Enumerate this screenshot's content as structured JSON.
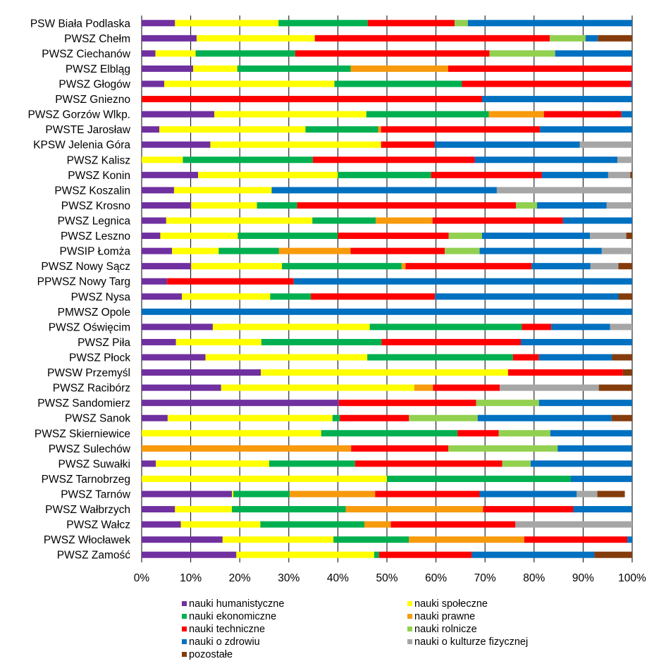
{
  "chart_data": {
    "type": "bar",
    "orientation": "horizontal",
    "stacked": true,
    "normalized": true,
    "xlim": [
      0,
      100
    ],
    "grid": true,
    "legend_position": "bottom",
    "x_ticks": [
      "0%",
      "10%",
      "20%",
      "30%",
      "40%",
      "50%",
      "60%",
      "70%",
      "80%",
      "90%",
      "100%"
    ],
    "categories": [
      "PSW Biała Podlaska",
      "PWSZ Chełm",
      "PWSZ Ciechanów",
      "PWSZ Elbląg",
      "PWSZ Głogów",
      "PWSZ Gniezno",
      "PWSZ Gorzów Wlkp.",
      "PWSTE Jarosław",
      "KPSW Jelenia Góra",
      "PWSZ Kalisz",
      "PWSZ Konin",
      "PWSZ Koszalin",
      "PWSZ Krosno",
      "PWSZ Legnica",
      "PWSZ Leszno",
      "PWSIP Łomża",
      "PWSZ Nowy Sącz",
      "PPWSZ Nowy Targ",
      "PWSZ Nysa",
      "PMWSZ Opole",
      "PWSZ Oświęcim",
      "PWSZ Piła",
      "PWSZ Płock",
      "PWSW Przemyśl",
      "PWSZ Racibórz",
      "PWSZ Sandomierz",
      "PWSZ Sanok",
      "PWSZ Skierniewice",
      "PWSZ Sulechów",
      "PWSZ Suwałki",
      "PWSZ Tarnobrzeg",
      "PWSZ Tarnów",
      "PWSZ Wałbrzych",
      "PWSZ Wałcz",
      "PWSZ Włocławek",
      "PWSZ Zamość"
    ],
    "series": [
      {
        "name": "nauki humanistyczne",
        "color": "#7030A0",
        "values": [
          6.8,
          11.2,
          2.8,
          10.5,
          4.6,
          0,
          14.8,
          3.6,
          14.0,
          0,
          11.5,
          6.6,
          10.1,
          5.0,
          3.8,
          6.2,
          10.1,
          5.2,
          8.2,
          0,
          14.5,
          7.0,
          13.0,
          24.3,
          16.2,
          40.2,
          5.3,
          0,
          0,
          2.9,
          0,
          18.4,
          6.8,
          8.0,
          16.5,
          19.3
        ]
      },
      {
        "name": "nauki społeczne",
        "color": "#FFFF00",
        "values": [
          21.1,
          24.1,
          8.2,
          9.0,
          34.7,
          0,
          31.0,
          29.8,
          34.8,
          8.4,
          28.5,
          19.9,
          13.4,
          29.8,
          15.8,
          9.5,
          18.5,
          0,
          18.0,
          0,
          32.0,
          17.4,
          33.0,
          50.4,
          39.4,
          0,
          33.6,
          36.6,
          0,
          23.1,
          50.0,
          0.3,
          11.6,
          16.2,
          22.6,
          28.1
        ]
      },
      {
        "name": "nauki ekonomiczne",
        "color": "#00B050",
        "values": [
          18.2,
          0,
          20.3,
          23.1,
          26.0,
          0,
          25.0,
          14.8,
          0,
          26.5,
          19.0,
          0,
          8.2,
          12.9,
          20.4,
          12.3,
          24.4,
          0,
          8.3,
          0,
          31.0,
          24.5,
          29.7,
          0,
          0,
          0,
          1.5,
          27.8,
          0,
          17.5,
          37.5,
          11.5,
          23.2,
          21.2,
          15.4,
          1.0
        ]
      },
      {
        "name": "nauki prawne",
        "color": "#F79A0C",
        "values": [
          0,
          0,
          0,
          19.9,
          0,
          0,
          11.2,
          0.6,
          0,
          0,
          0,
          0,
          0,
          11.6,
          0,
          14.6,
          0.8,
          0,
          0,
          0,
          0,
          0,
          0,
          0,
          3.8,
          0,
          0,
          0,
          42.7,
          0,
          0,
          17.4,
          28.0,
          5.4,
          23.5,
          0
        ]
      },
      {
        "name": "nauki techniczne",
        "color": "#FF0000",
        "values": [
          17.7,
          47.9,
          39.6,
          37.5,
          34.5,
          69.4,
          15.8,
          32.4,
          10.9,
          33.0,
          22.6,
          0,
          44.6,
          26.6,
          22.6,
          19.2,
          25.7,
          25.8,
          25.3,
          0,
          6.0,
          28.4,
          5.3,
          23.4,
          13.6,
          28.0,
          14.1,
          8.4,
          19.8,
          30.0,
          0,
          21.3,
          18.4,
          25.4,
          21.0,
          18.9
        ]
      },
      {
        "name": "nauki rolnicze",
        "color": "#92D050",
        "values": [
          2.7,
          7.3,
          13.4,
          0,
          0,
          0,
          0,
          0,
          0,
          0,
          0,
          0,
          4.3,
          0,
          6.8,
          7.1,
          0,
          0,
          0,
          0,
          0,
          0,
          0,
          0,
          0,
          12.8,
          14.0,
          10.5,
          22.3,
          5.8,
          0,
          0,
          0,
          0,
          0,
          0
        ]
      },
      {
        "name": "nauki o zdrowiu",
        "color": "#0070C0",
        "values": [
          33.5,
          2.5,
          15.7,
          0,
          0.2,
          30.6,
          2.2,
          18.8,
          29.6,
          29.1,
          13.5,
          45.9,
          14.2,
          14.1,
          22.0,
          24.9,
          12.0,
          69.0,
          37.4,
          100,
          12.0,
          22.7,
          14.9,
          0,
          0,
          19.0,
          27.3,
          16.7,
          15.2,
          20.7,
          12.5,
          19.8,
          12.0,
          0,
          1.0,
          25.0
        ]
      },
      {
        "name": "nauki o kulturze fizycznej",
        "color": "#A6A6A6",
        "values": [
          0,
          0,
          0,
          0,
          0,
          0,
          0,
          0,
          10.7,
          3.0,
          4.5,
          27.6,
          5.2,
          0,
          7.4,
          6.2,
          5.7,
          0,
          0,
          0,
          4.5,
          0,
          0,
          0,
          20.2,
          0,
          0,
          0,
          0,
          0,
          0,
          4.2,
          0,
          23.8,
          0,
          0
        ]
      },
      {
        "name": "pozostałe",
        "color": "#843C0C",
        "values": [
          0,
          7.0,
          0,
          0,
          0,
          0,
          0,
          0,
          0,
          0,
          0.4,
          0,
          0,
          0,
          1.2,
          0,
          2.8,
          0,
          2.8,
          0,
          0,
          0,
          4.1,
          1.9,
          6.8,
          0,
          4.2,
          0,
          0,
          0,
          0,
          5.6,
          0,
          0,
          0,
          7.7
        ]
      }
    ]
  }
}
